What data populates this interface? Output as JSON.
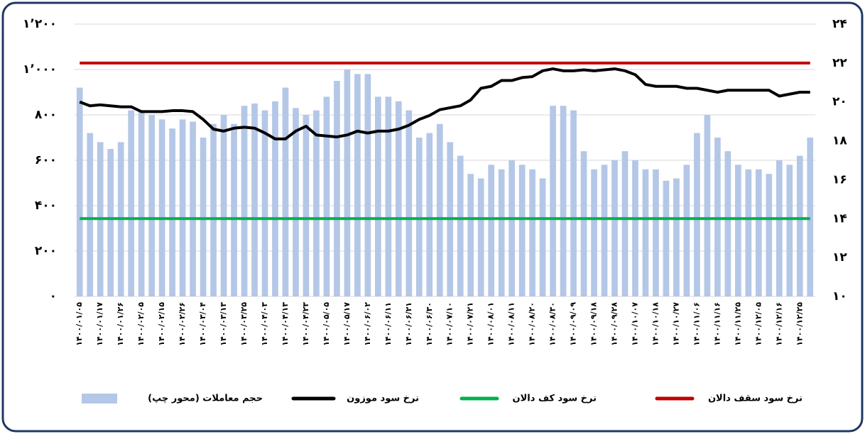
{
  "chart_data": {
    "type": "bar",
    "categories": [
      "۱۴۰۰/۰۱/۰۵",
      null,
      "۱۴۰۰/۰۱/۱۷",
      null,
      "۱۴۰۰/۰۱/۲۶",
      null,
      "۱۴۰۰/۰۲/۰۵",
      null,
      "۱۴۰۰/۰۲/۱۵",
      null,
      "۱۴۰۰/۰۲/۲۶",
      null,
      "۱۴۰۰/۰۳/۰۴",
      null,
      "۱۴۰۰/۰۳/۱۳",
      null,
      "۱۴۰۰/۰۳/۲۵",
      null,
      "۱۴۰۰/۰۴/۰۳",
      null,
      "۱۴۰۰/۰۴/۱۳",
      null,
      "۱۴۰۰/۰۴/۲۳",
      null,
      "۱۴۰۰/۰۵/۰۵",
      null,
      "۱۴۰۰/۰۵/۱۷",
      null,
      "۱۴۰۰/۰۶/۰۲",
      null,
      "۱۴۰۰/۰۶/۱۱",
      null,
      "۱۴۰۰/۰۶/۲۱",
      null,
      "۱۴۰۰/۰۶/۳۰",
      null,
      "۱۴۰۰/۰۷/۱۰",
      null,
      "۱۴۰۰/۰۷/۲۱",
      null,
      "۱۴۰۰/۰۸/۰۱",
      null,
      "۱۴۰۰/۰۸/۱۱",
      null,
      "۱۴۰۰/۰۸/۲۰",
      null,
      "۱۴۰۰/۰۸/۳۰",
      null,
      "۱۴۰۰/۰۹/۰۹",
      null,
      "۱۴۰۰/۰۹/۱۸",
      null,
      "۱۴۰۰/۰۹/۲۸",
      null,
      "۱۴۰۰/۱۰/۰۷",
      null,
      "۱۴۰۰/۱۰/۱۸",
      null,
      "۱۴۰۰/۱۰/۲۷",
      null,
      "۱۴۰۰/۱۱/۰۶",
      null,
      "۱۴۰۰/۱۱/۱۶",
      null,
      "۱۴۰۰/۱۱/۲۵",
      null,
      "۱۴۰۰/۱۲/۰۵",
      null,
      "۱۴۰۰/۱۲/۱۶",
      null,
      "۱۴۰۰/۱۲/۲۵",
      null
    ],
    "series": [
      {
        "name": "حجم معاملات (محور چپ)",
        "color": "#b4c7e7",
        "axis": "y",
        "values": [
          920,
          720,
          680,
          650,
          680,
          820,
          820,
          800,
          780,
          740,
          780,
          770,
          700,
          760,
          800,
          760,
          840,
          850,
          820,
          860,
          920,
          830,
          800,
          820,
          880,
          950,
          1000,
          980,
          980,
          880,
          880,
          860,
          820,
          700,
          720,
          760,
          680,
          620,
          540,
          520,
          580,
          560,
          600,
          580,
          560,
          520,
          840,
          840,
          820,
          640,
          560,
          580,
          600,
          640,
          600,
          560,
          560,
          510,
          520,
          580,
          720,
          800,
          700,
          640,
          580,
          560,
          560,
          540,
          600,
          580,
          620,
          700
        ]
      },
      {
        "name": "نرخ سود موزون",
        "color": "#000000",
        "axis": "y2",
        "values": [
          20.0,
          19.8,
          19.85,
          19.8,
          19.75,
          19.75,
          19.5,
          19.5,
          19.5,
          19.55,
          19.55,
          19.5,
          19.1,
          18.6,
          18.5,
          18.65,
          18.7,
          18.65,
          18.4,
          18.1,
          18.1,
          18.5,
          18.75,
          18.3,
          18.25,
          18.2,
          18.3,
          18.5,
          18.4,
          18.5,
          18.5,
          18.6,
          18.8,
          19.1,
          19.3,
          19.6,
          19.7,
          19.8,
          20.1,
          20.7,
          20.8,
          21.1,
          21.1,
          21.25,
          21.3,
          21.6,
          21.7,
          21.6,
          21.6,
          21.65,
          21.6,
          21.65,
          21.7,
          21.6,
          21.4,
          20.9,
          20.8,
          20.8,
          20.8,
          20.7,
          20.7,
          20.6,
          20.5,
          20.6,
          20.6,
          20.6,
          20.6,
          20.6,
          20.3,
          20.4,
          20.5,
          20.5
        ]
      },
      {
        "name": "نرخ سود کف دالان",
        "color": "#00b050",
        "axis": "y2",
        "values": [
          14,
          14,
          14,
          14,
          14,
          14,
          14,
          14,
          14,
          14,
          14,
          14,
          14,
          14,
          14,
          14,
          14,
          14,
          14,
          14,
          14,
          14,
          14,
          14,
          14,
          14,
          14,
          14,
          14,
          14,
          14,
          14,
          14,
          14,
          14,
          14,
          14,
          14,
          14,
          14,
          14,
          14,
          14,
          14,
          14,
          14,
          14,
          14,
          14,
          14,
          14,
          14,
          14,
          14,
          14,
          14,
          14,
          14,
          14,
          14,
          14,
          14,
          14,
          14,
          14,
          14,
          14,
          14,
          14,
          14,
          14,
          14
        ]
      },
      {
        "name": "نرخ سود سقف دالان",
        "color": "#c00000",
        "axis": "y2",
        "values": [
          22,
          22,
          22,
          22,
          22,
          22,
          22,
          22,
          22,
          22,
          22,
          22,
          22,
          22,
          22,
          22,
          22,
          22,
          22,
          22,
          22,
          22,
          22,
          22,
          22,
          22,
          22,
          22,
          22,
          22,
          22,
          22,
          22,
          22,
          22,
          22,
          22,
          22,
          22,
          22,
          22,
          22,
          22,
          22,
          22,
          22,
          22,
          22,
          22,
          22,
          22,
          22,
          22,
          22,
          22,
          22,
          22,
          22,
          22,
          22,
          22,
          22,
          22,
          22,
          22,
          22,
          22,
          22,
          22,
          22,
          22,
          22
        ]
      }
    ],
    "ylim": [
      0,
      1200
    ],
    "yticks": [
      {
        "value": 0,
        "label": "۰"
      },
      {
        "value": 200,
        "label": "۲۰۰"
      },
      {
        "value": 400,
        "label": "۴۰۰"
      },
      {
        "value": 600,
        "label": "۶۰۰"
      },
      {
        "value": 800,
        "label": "۸۰۰"
      },
      {
        "value": 1000,
        "label": "۱’۰۰۰"
      },
      {
        "value": 1200,
        "label": "۱’۲۰۰"
      }
    ],
    "y2lim": [
      10,
      24
    ],
    "y2ticks": [
      {
        "value": 10,
        "label": "۱۰"
      },
      {
        "value": 12,
        "label": "۱۲"
      },
      {
        "value": 14,
        "label": "۱۴"
      },
      {
        "value": 16,
        "label": "۱۶"
      },
      {
        "value": 18,
        "label": "۱۸"
      },
      {
        "value": 20,
        "label": "۲۰"
      },
      {
        "value": 22,
        "label": "۲۲"
      },
      {
        "value": 24,
        "label": "۲۴"
      }
    ],
    "grid": true,
    "legend": "bottom"
  }
}
